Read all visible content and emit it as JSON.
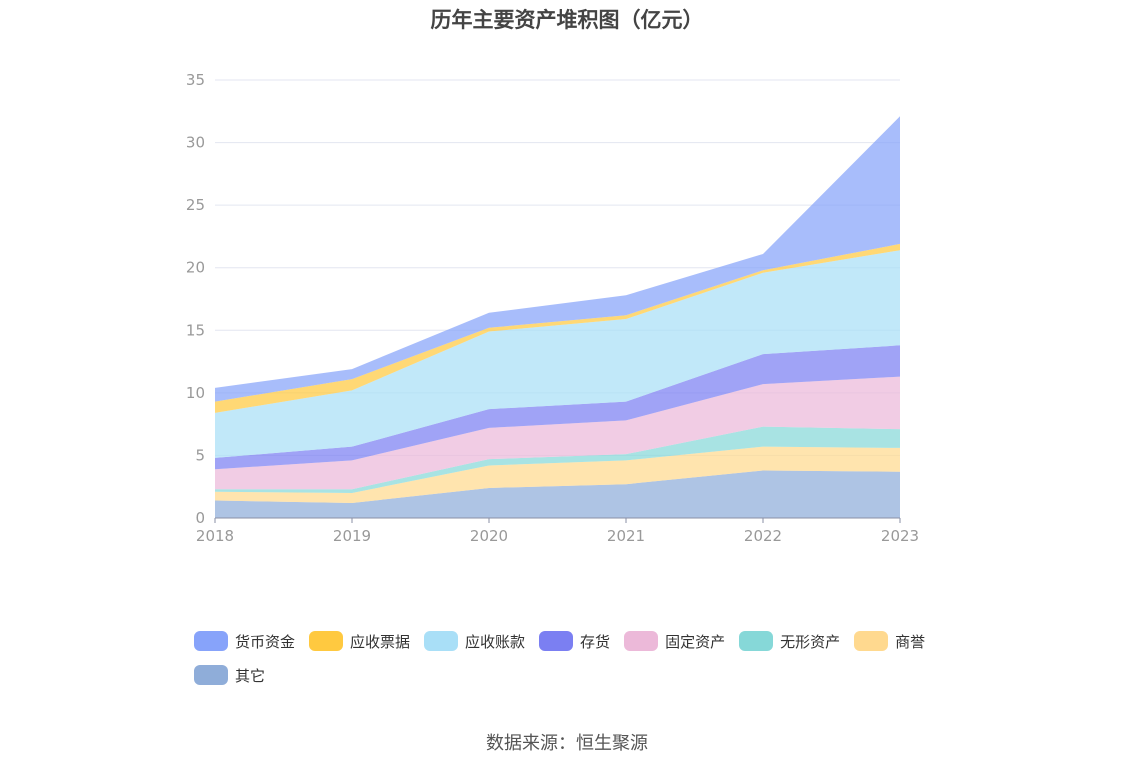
{
  "chart_data": {
    "type": "area",
    "stacked": true,
    "title": "历年主要资产堆积图（亿元）",
    "xlabel": "",
    "ylabel": "",
    "categories": [
      "2018",
      "2019",
      "2020",
      "2021",
      "2022",
      "2023"
    ],
    "ylim": [
      0,
      35
    ],
    "yticks": [
      0,
      5,
      10,
      15,
      20,
      25,
      30,
      35
    ],
    "grid": true,
    "legend_position": "bottom",
    "series": [
      {
        "name": "其它",
        "color": "#8fadd9",
        "values": [
          1.4,
          1.2,
          2.4,
          2.7,
          3.8,
          3.7
        ]
      },
      {
        "name": "商誉",
        "color": "#ffd98f",
        "values": [
          0.7,
          0.8,
          1.8,
          1.9,
          1.9,
          1.9
        ]
      },
      {
        "name": "无形资产",
        "color": "#86d8d8",
        "values": [
          0.2,
          0.3,
          0.5,
          0.5,
          1.6,
          1.5
        ]
      },
      {
        "name": "固定资产",
        "color": "#ecb9d9",
        "values": [
          1.6,
          2.3,
          2.5,
          2.7,
          3.4,
          4.2
        ]
      },
      {
        "name": "存货",
        "color": "#7b7ff2",
        "values": [
          0.9,
          1.1,
          1.5,
          1.5,
          2.4,
          2.5
        ]
      },
      {
        "name": "应收账款",
        "color": "#a9dff7",
        "values": [
          3.6,
          4.5,
          6.2,
          6.6,
          6.5,
          7.6
        ]
      },
      {
        "name": "应收票据",
        "color": "#ffc940",
        "values": [
          0.9,
          0.9,
          0.3,
          0.3,
          0.2,
          0.5
        ]
      },
      {
        "name": "货币资金",
        "color": "#87a3fa",
        "values": [
          1.1,
          0.8,
          1.2,
          1.6,
          1.3,
          10.2
        ]
      }
    ],
    "legend_order": [
      "货币资金",
      "应收票据",
      "应收账款",
      "存货",
      "固定资产",
      "无形资产",
      "商誉",
      "其它"
    ]
  },
  "source_text": "数据来源：恒生聚源"
}
